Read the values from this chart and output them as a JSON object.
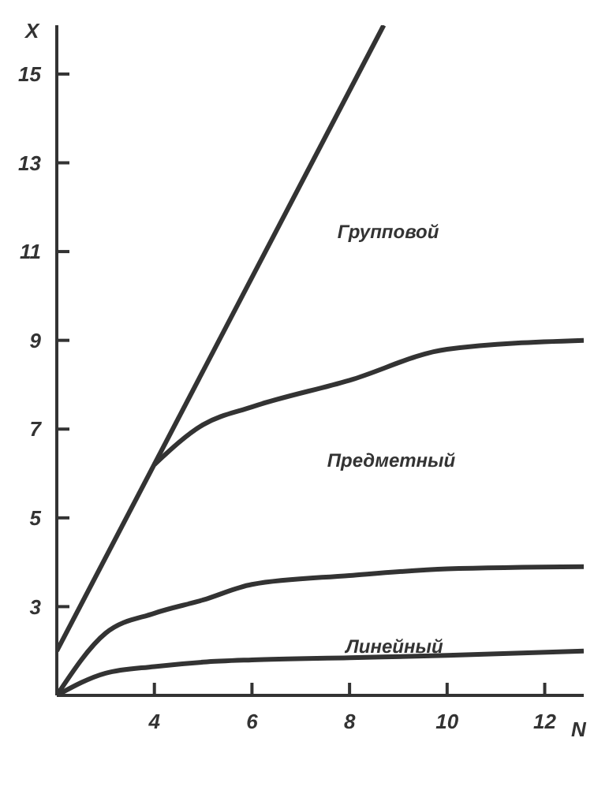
{
  "chart_data": {
    "type": "line",
    "xlabel": "N",
    "ylabel": "X",
    "xlim": [
      2,
      12.8
    ],
    "ylim": [
      1,
      16.1
    ],
    "xticks": [
      4,
      6,
      8,
      10,
      12
    ],
    "yticks": [
      3,
      5,
      7,
      9,
      11,
      13,
      15
    ],
    "grid": false,
    "marker": "none",
    "line_style": "solid",
    "series": [
      {
        "color": "#333333",
        "x": [
          2,
          8.7
        ],
        "values": [
          2,
          16.1
        ]
      },
      {
        "color": "#333333",
        "x": [
          4,
          5,
          6,
          8,
          10,
          12.8
        ],
        "values": [
          6.2,
          7.1,
          7.5,
          8.1,
          8.8,
          9.0
        ]
      },
      {
        "color": "#333333",
        "x": [
          2,
          3,
          4,
          5,
          6,
          8,
          10,
          12.8
        ],
        "values": [
          1,
          2.4,
          2.85,
          3.15,
          3.5,
          3.7,
          3.85,
          3.9
        ]
      },
      {
        "color": "#333333",
        "x": [
          2,
          3,
          4,
          5,
          6,
          8,
          10,
          12.8
        ],
        "values": [
          1,
          1.5,
          1.65,
          1.75,
          1.8,
          1.85,
          1.9,
          2.0
        ]
      }
    ],
    "annotations": [
      "Групповой",
      "Предметный",
      "Линейный"
    ]
  }
}
